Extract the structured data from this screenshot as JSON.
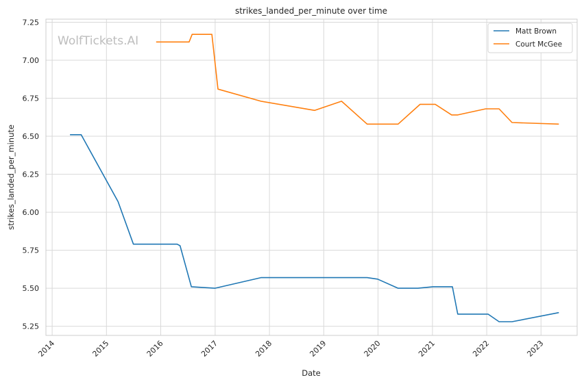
{
  "chart_data": {
    "type": "line",
    "title": "strikes_landed_per_minute over time",
    "xlabel": "Date",
    "ylabel": "strikes_landed_per_minute",
    "watermark": "WolfTickets.AI",
    "x_tick_labels": [
      "2014",
      "2015",
      "2016",
      "2017",
      "2018",
      "2019",
      "2020",
      "2021",
      "2022",
      "2023"
    ],
    "y_tick_labels": [
      "5.25",
      "5.50",
      "5.75",
      "6.00",
      "6.25",
      "6.50",
      "6.75",
      "7.00",
      "7.25"
    ],
    "xlim": [
      "2013-11-20",
      "2023-09-01"
    ],
    "ylim": [
      5.19,
      7.27
    ],
    "grid": true,
    "legend_position": "top-right",
    "series": [
      {
        "name": "Matt Brown",
        "color": "#1f77b4",
        "points": [
          [
            "2014-05-01",
            6.51
          ],
          [
            "2014-07-15",
            6.51
          ],
          [
            "2015-03-20",
            6.07
          ],
          [
            "2015-07-01",
            5.79
          ],
          [
            "2016-04-20",
            5.79
          ],
          [
            "2016-05-10",
            5.78
          ],
          [
            "2016-07-25",
            5.51
          ],
          [
            "2016-12-30",
            5.5
          ],
          [
            "2017-11-05",
            5.57
          ],
          [
            "2019-10-20",
            5.57
          ],
          [
            "2019-12-30",
            5.56
          ],
          [
            "2020-05-15",
            5.5
          ],
          [
            "2020-09-25",
            5.5
          ],
          [
            "2021-01-05",
            5.51
          ],
          [
            "2021-05-15",
            5.51
          ],
          [
            "2021-06-20",
            5.33
          ],
          [
            "2022-01-10",
            5.33
          ],
          [
            "2022-03-25",
            5.28
          ],
          [
            "2022-06-20",
            5.28
          ],
          [
            "2023-05-01",
            5.34
          ]
        ]
      },
      {
        "name": "Court McGee",
        "color": "#ff7f0e",
        "points": [
          [
            "2015-12-01",
            7.12
          ],
          [
            "2016-07-10",
            7.12
          ],
          [
            "2016-07-30",
            7.17
          ],
          [
            "2016-12-10",
            7.17
          ],
          [
            "2017-01-20",
            6.81
          ],
          [
            "2017-11-05",
            6.73
          ],
          [
            "2018-11-01",
            6.67
          ],
          [
            "2019-05-01",
            6.73
          ],
          [
            "2019-10-20",
            6.58
          ],
          [
            "2020-05-15",
            6.58
          ],
          [
            "2020-10-10",
            6.71
          ],
          [
            "2021-01-20",
            6.71
          ],
          [
            "2021-05-10",
            6.64
          ],
          [
            "2021-06-20",
            6.64
          ],
          [
            "2021-12-25",
            6.68
          ],
          [
            "2022-03-25",
            6.68
          ],
          [
            "2022-06-20",
            6.59
          ],
          [
            "2023-05-01",
            6.58
          ]
        ]
      }
    ]
  }
}
